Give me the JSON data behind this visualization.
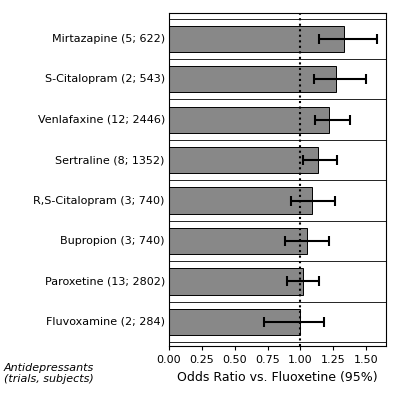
{
  "drugs": [
    "Fluvoxamine (2; 284)",
    "Paroxetine (13; 2802)",
    "Bupropion (3; 740)",
    "R,S-Citalopram (3; 740)",
    "Sertraline (8; 1352)",
    "Venlafaxine (12; 2446)",
    "S-Citalopram (2; 543)",
    "Mirtazapine (5; 622)"
  ],
  "or": [
    1.0,
    1.02,
    1.05,
    1.09,
    1.13,
    1.22,
    1.27,
    1.33
  ],
  "ci_lower": [
    0.72,
    0.9,
    0.88,
    0.93,
    1.02,
    1.11,
    1.1,
    1.14
  ],
  "ci_upper": [
    1.18,
    1.14,
    1.22,
    1.26,
    1.28,
    1.38,
    1.5,
    1.58
  ],
  "bar_color": "#888888",
  "bar_edge_color": "#000000",
  "xlim": [
    0.0,
    1.65
  ],
  "xticks": [
    0.0,
    0.25,
    0.5,
    0.75,
    1.0,
    1.25,
    1.5
  ],
  "xticklabels": [
    "0.00",
    "0.25",
    "0.50",
    "0.75",
    "1.00",
    "1.25",
    "1.50"
  ],
  "vline_x": 1.0,
  "xlabel": "Odds Ratio vs. Fluoxetine (95%)",
  "ylabel_line1": "Antidepressants",
  "ylabel_line2": "(trials, subjects)",
  "background_color": "#ffffff",
  "label_fontsize": 8,
  "xlabel_fontsize": 9,
  "ylabel_italic_fontsize": 8
}
